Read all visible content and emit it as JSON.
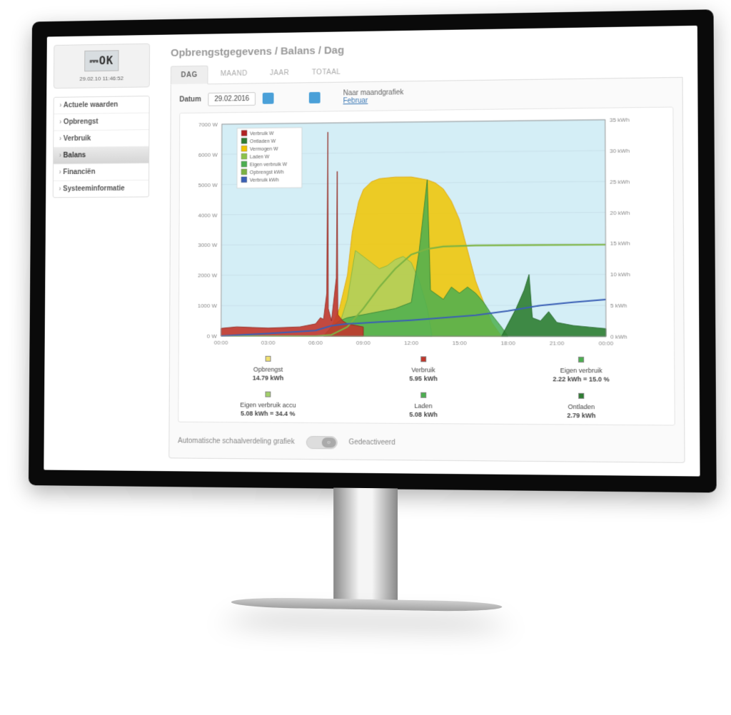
{
  "device": {
    "lcd": "⎓OK",
    "timestamp": "29.02.10 11:46:52"
  },
  "sidebar": {
    "items": [
      {
        "label": "Actuele waarden",
        "active": false
      },
      {
        "label": "Opbrengst",
        "active": false
      },
      {
        "label": "Verbruik",
        "active": false
      },
      {
        "label": "Balans",
        "active": true
      },
      {
        "label": "Financiën",
        "active": false
      },
      {
        "label": "Systeeminformatie",
        "active": false
      }
    ]
  },
  "breadcrumb": "Opbrengstgegevens / Balans / Dag",
  "tabs": [
    {
      "label": "DAG",
      "active": true
    },
    {
      "label": "MAAND",
      "active": false
    },
    {
      "label": "JAAR",
      "active": false
    },
    {
      "label": "TOTAAL",
      "active": false
    }
  ],
  "datebar": {
    "label": "Datum",
    "value": "29.02.2016",
    "to_month_label": "Naar maandgrafiek",
    "month_link": "Februar"
  },
  "chart": {
    "type": "mixed-area-line",
    "background": "#d4eef6",
    "grid_color": "#c8e0ea",
    "x": {
      "min": 0,
      "max": 24,
      "tick_step": 3,
      "labels": [
        "00:00",
        "03:00",
        "06:00",
        "09:00",
        "12:00",
        "15:00",
        "18:00",
        "21:00",
        "00:00"
      ]
    },
    "yL": {
      "min": 0,
      "max": 7000,
      "tick_step": 1000,
      "unit": "W"
    },
    "yR": {
      "min": 0,
      "max": 35,
      "tick_step": 5,
      "unit": "kWh"
    },
    "legend": [
      {
        "label": "Verbruik W",
        "color": "#b22222",
        "type": "area"
      },
      {
        "label": "Ontladen W",
        "color": "#2e7d32",
        "type": "area"
      },
      {
        "label": "Vermogen W",
        "color": "#f0c400",
        "type": "area"
      },
      {
        "label": "Laden W",
        "color": "#8bc34a",
        "type": "area"
      },
      {
        "label": "Eigen verbruik W",
        "color": "#4caf50",
        "type": "area"
      },
      {
        "label": "Opbrengst kWh",
        "color": "#7cb342",
        "type": "line"
      },
      {
        "label": "Verbruik kWh",
        "color": "#3a5fb5",
        "type": "line"
      }
    ],
    "vermogen_w": {
      "color": "#f0c400",
      "stroke": "#e0a000",
      "opacity": 0.85,
      "points": [
        [
          6.5,
          0
        ],
        [
          7,
          300
        ],
        [
          7.5,
          900
        ],
        [
          8,
          2000
        ],
        [
          8.3,
          3400
        ],
        [
          8.7,
          4400
        ],
        [
          9,
          4800
        ],
        [
          9.5,
          5050
        ],
        [
          10,
          5150
        ],
        [
          11,
          5200
        ],
        [
          12,
          5200
        ],
        [
          12.5,
          5150
        ],
        [
          13,
          5100
        ],
        [
          13.5,
          5000
        ],
        [
          14,
          4800
        ],
        [
          14.5,
          4400
        ],
        [
          15,
          3800
        ],
        [
          15.5,
          2800
        ],
        [
          16,
          1800
        ],
        [
          16.5,
          1100
        ],
        [
          17,
          450
        ],
        [
          17.6,
          0
        ]
      ]
    },
    "laden_w": {
      "color": "#a2d06a",
      "stroke": "#7cb342",
      "opacity": 0.7,
      "points": [
        [
          7,
          0
        ],
        [
          7.4,
          200
        ],
        [
          8,
          1200
        ],
        [
          8.5,
          2800
        ],
        [
          9,
          2600
        ],
        [
          9.5,
          2400
        ],
        [
          10,
          2200
        ],
        [
          10.5,
          2300
        ],
        [
          11,
          2500
        ],
        [
          11.5,
          2600
        ],
        [
          12,
          2400
        ],
        [
          12.5,
          1800
        ],
        [
          13,
          900
        ],
        [
          13.3,
          0
        ]
      ]
    },
    "eigen_w": {
      "color": "#4caf50",
      "stroke": "#2e7d32",
      "opacity": 0.85,
      "points": [
        [
          6.5,
          0
        ],
        [
          7,
          300
        ],
        [
          7.5,
          500
        ],
        [
          8,
          600
        ],
        [
          9,
          700
        ],
        [
          10,
          800
        ],
        [
          11,
          900
        ],
        [
          12,
          1100
        ],
        [
          12.5,
          2800
        ],
        [
          13,
          5100
        ],
        [
          13.2,
          1500
        ],
        [
          14,
          1200
        ],
        [
          14.5,
          1600
        ],
        [
          15,
          1400
        ],
        [
          15.5,
          1600
        ],
        [
          16,
          1400
        ],
        [
          16.5,
          1100
        ],
        [
          17,
          700
        ],
        [
          17.6,
          300
        ],
        [
          18,
          0
        ]
      ]
    },
    "ontladen_w": {
      "color": "#2e7d32",
      "stroke": "#1b5e20",
      "opacity": 0.9,
      "points": [
        [
          17.6,
          0
        ],
        [
          18,
          400
        ],
        [
          18.5,
          900
        ],
        [
          19,
          1500
        ],
        [
          19.3,
          2000
        ],
        [
          19.5,
          600
        ],
        [
          20,
          500
        ],
        [
          20.5,
          800
        ],
        [
          21,
          450
        ],
        [
          22,
          350
        ],
        [
          23,
          300
        ],
        [
          24,
          250
        ]
      ]
    },
    "verbruik_w": {
      "color": "#c1362c",
      "stroke": "#8e1f17",
      "opacity": 0.9,
      "points": [
        [
          0,
          250
        ],
        [
          1,
          300
        ],
        [
          2,
          280
        ],
        [
          3,
          260
        ],
        [
          4,
          280
        ],
        [
          5,
          300
        ],
        [
          5.5,
          350
        ],
        [
          6,
          400
        ],
        [
          6.3,
          600
        ],
        [
          6.5,
          550
        ],
        [
          6.7,
          1400
        ],
        [
          6.75,
          6700
        ],
        [
          6.8,
          900
        ],
        [
          7,
          500
        ],
        [
          7.3,
          1900
        ],
        [
          7.35,
          5400
        ],
        [
          7.4,
          700
        ],
        [
          7.7,
          500
        ],
        [
          8,
          400
        ],
        [
          8.5,
          350
        ],
        [
          9,
          300
        ]
      ]
    },
    "opbrengst_kwh": {
      "color": "#7cb342",
      "width": 2.2,
      "points": [
        [
          0,
          0
        ],
        [
          6,
          0
        ],
        [
          7,
          0.2
        ],
        [
          8,
          1.5
        ],
        [
          9,
          4.5
        ],
        [
          10,
          8
        ],
        [
          11,
          11
        ],
        [
          12,
          13.3
        ],
        [
          13,
          14.2
        ],
        [
          14,
          14.6
        ],
        [
          16,
          14.75
        ],
        [
          24,
          14.79
        ]
      ]
    },
    "verbruik_kwh": {
      "color": "#3a5fb5",
      "width": 2,
      "points": [
        [
          0,
          0
        ],
        [
          3,
          0.4
        ],
        [
          6,
          0.9
        ],
        [
          7,
          1.7
        ],
        [
          8,
          2.0
        ],
        [
          10,
          2.3
        ],
        [
          12,
          2.6
        ],
        [
          14,
          3.0
        ],
        [
          16,
          3.4
        ],
        [
          18,
          4.1
        ],
        [
          20,
          5.0
        ],
        [
          22,
          5.5
        ],
        [
          24,
          5.95
        ]
      ]
    }
  },
  "summaries": [
    {
      "swatch": "#f0e070",
      "title": "Opbrengst",
      "value": "14.79 kWh",
      "swatch2": "#a2d06a",
      "title2": "Eigen verbruik accu",
      "value2": "5.08 kWh = 34.4 %"
    },
    {
      "swatch": "#c1362c",
      "title": "Verbruik",
      "value": "5.95 kWh",
      "swatch2": "#4caf50",
      "title2": "Laden",
      "value2": "5.08 kWh"
    },
    {
      "swatch": "#4caf50",
      "title": "Eigen verbruik",
      "value": "2.22 kWh = 15.0 %",
      "swatch2": "#2e7d32",
      "title2": "Ontladen",
      "value2": "2.79 kWh"
    }
  ],
  "autoscale": {
    "label": "Automatische schaalverdeling grafiek",
    "state": "Gedeactiveerd"
  }
}
